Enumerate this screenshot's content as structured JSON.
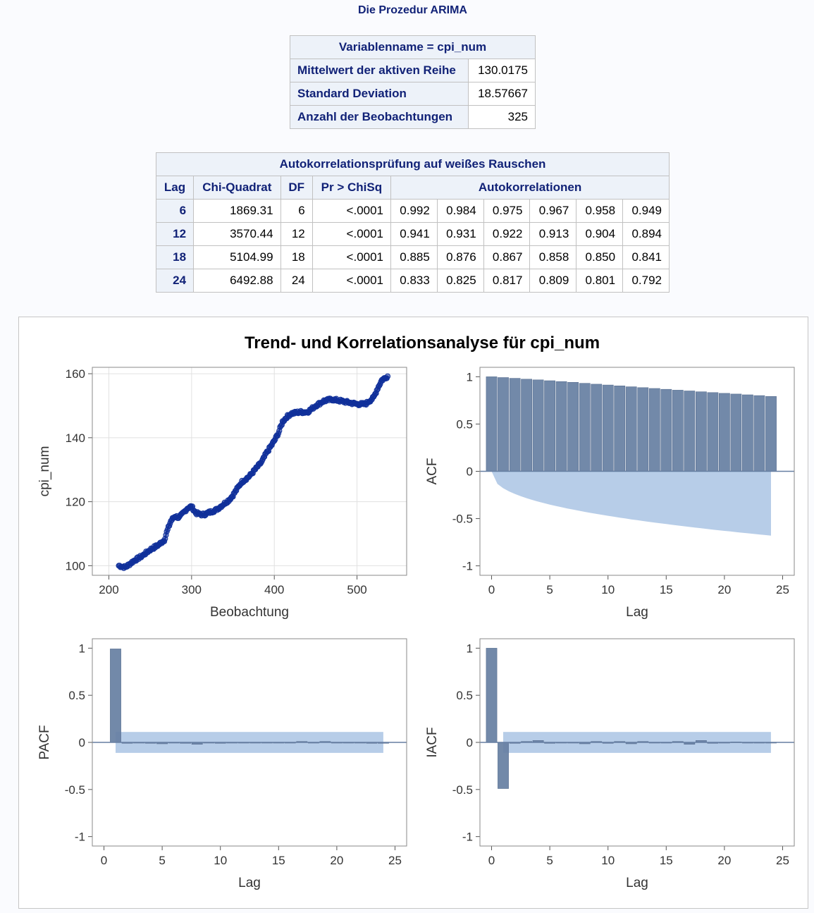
{
  "procedure_title": "Die Prozedur ARIMA",
  "summary_table": {
    "header": "Variablenname = cpi_num",
    "rows": [
      {
        "label": "Mittelwert der aktiven Reihe",
        "value": "130.0175"
      },
      {
        "label": "Standard Deviation",
        "value": "18.57667"
      },
      {
        "label": "Anzahl der Beobachtungen",
        "value": "325"
      }
    ]
  },
  "whitenoise_table": {
    "title": "Autokorrelationsprüfung auf weißes Rauschen",
    "columns": [
      "Lag",
      "Chi-Quadrat",
      "DF",
      "Pr > ChiSq",
      "Autokorrelationen"
    ],
    "rows": [
      {
        "lag": "6",
        "chisq": "1869.31",
        "df": "6",
        "p": "<.0001",
        "ac": [
          "0.992",
          "0.984",
          "0.975",
          "0.967",
          "0.958",
          "0.949"
        ]
      },
      {
        "lag": "12",
        "chisq": "3570.44",
        "df": "12",
        "p": "<.0001",
        "ac": [
          "0.941",
          "0.931",
          "0.922",
          "0.913",
          "0.904",
          "0.894"
        ]
      },
      {
        "lag": "18",
        "chisq": "5104.99",
        "df": "18",
        "p": "<.0001",
        "ac": [
          "0.885",
          "0.876",
          "0.867",
          "0.858",
          "0.850",
          "0.841"
        ]
      },
      {
        "lag": "24",
        "chisq": "6492.88",
        "df": "24",
        "p": "<.0001",
        "ac": [
          "0.833",
          "0.825",
          "0.817",
          "0.809",
          "0.801",
          "0.792"
        ]
      }
    ]
  },
  "panel_title": "Trend- und Korrelationsanalyse für cpi_num",
  "colors": {
    "bar": "#667fa2",
    "band": "#b7cde8",
    "series": "#10309a",
    "header_text": "#112277"
  },
  "chart_data": [
    {
      "type": "scatter",
      "xlabel": "Beobachtung",
      "ylabel": "cpi_num",
      "xlim": [
        180,
        560
      ],
      "ylim": [
        97,
        162
      ],
      "xticks": [
        200,
        300,
        400,
        500
      ],
      "yticks": [
        100,
        120,
        140,
        160
      ],
      "grid": true,
      "anchors": [
        [
          212,
          100
        ],
        [
          220,
          99.5
        ],
        [
          225,
          100.5
        ],
        [
          230,
          101.5
        ],
        [
          240,
          103
        ],
        [
          250,
          105
        ],
        [
          260,
          106.5
        ],
        [
          267,
          108
        ],
        [
          270,
          110.5
        ],
        [
          275,
          114
        ],
        [
          280,
          115.5
        ],
        [
          285,
          115
        ],
        [
          290,
          116.5
        ],
        [
          295,
          118
        ],
        [
          300,
          118.5
        ],
        [
          305,
          116.5
        ],
        [
          310,
          116
        ],
        [
          315,
          116
        ],
        [
          320,
          116.5
        ],
        [
          325,
          117
        ],
        [
          330,
          117.5
        ],
        [
          335,
          118.5
        ],
        [
          340,
          119.5
        ],
        [
          345,
          120.5
        ],
        [
          350,
          122
        ],
        [
          355,
          124
        ],
        [
          360,
          126
        ],
        [
          365,
          127
        ],
        [
          370,
          128
        ],
        [
          375,
          129.5
        ],
        [
          380,
          131
        ],
        [
          385,
          132.5
        ],
        [
          390,
          135
        ],
        [
          395,
          137
        ],
        [
          400,
          139
        ],
        [
          405,
          141.5
        ],
        [
          410,
          145
        ],
        [
          415,
          146.5
        ],
        [
          420,
          147.5
        ],
        [
          430,
          148
        ],
        [
          440,
          148
        ],
        [
          450,
          150
        ],
        [
          460,
          151.5
        ],
        [
          470,
          152
        ],
        [
          480,
          151.5
        ],
        [
          490,
          151
        ],
        [
          500,
          150.5
        ],
        [
          510,
          150.5
        ],
        [
          520,
          152.5
        ],
        [
          525,
          155.5
        ],
        [
          530,
          158
        ],
        [
          537,
          159.2
        ]
      ]
    },
    {
      "type": "bar",
      "ylabel": "ACF",
      "xlabel": "Lag",
      "xlim": [
        -1,
        26
      ],
      "ylim": [
        -1.1,
        1.1
      ],
      "xticks": [
        0,
        5,
        10,
        15,
        20,
        25
      ],
      "yticks": [
        1.0,
        0.5,
        0.0,
        -0.5,
        -1.0
      ],
      "x": [
        0,
        1,
        2,
        3,
        4,
        5,
        6,
        7,
        8,
        9,
        10,
        11,
        12,
        13,
        14,
        15,
        16,
        17,
        18,
        19,
        20,
        21,
        22,
        23,
        24
      ],
      "values": [
        1.0,
        0.992,
        0.984,
        0.975,
        0.967,
        0.958,
        0.949,
        0.941,
        0.931,
        0.922,
        0.913,
        0.904,
        0.894,
        0.885,
        0.876,
        0.867,
        0.858,
        0.85,
        0.841,
        0.833,
        0.825,
        0.817,
        0.809,
        0.801,
        0.792
      ],
      "band_lower_end": -0.68
    },
    {
      "type": "bar",
      "ylabel": "PACF",
      "xlabel": "Lag",
      "xlim": [
        -1,
        26
      ],
      "ylim": [
        -1.1,
        1.1
      ],
      "xticks": [
        0,
        5,
        10,
        15,
        20,
        25
      ],
      "yticks": [
        1.0,
        0.5,
        0.0,
        -0.5,
        -1.0
      ],
      "x": [
        1,
        2,
        3,
        4,
        5,
        6,
        7,
        8,
        9,
        10,
        11,
        12,
        13,
        14,
        15,
        16,
        17,
        18,
        19,
        20,
        21,
        22,
        23,
        24
      ],
      "values": [
        0.992,
        -0.01,
        0.0,
        -0.01,
        -0.015,
        0.0,
        -0.01,
        -0.02,
        0.0,
        -0.01,
        0.0,
        -0.005,
        0.0,
        0.0,
        0.0,
        0.0,
        0.01,
        0.0,
        0.01,
        0.0,
        0.0,
        0.0,
        -0.01,
        -0.01
      ],
      "band": 0.111
    },
    {
      "type": "bar",
      "ylabel": "IACF",
      "xlabel": "Lag",
      "xlim": [
        -1,
        26
      ],
      "ylim": [
        -1.1,
        1.1
      ],
      "xticks": [
        0,
        5,
        10,
        15,
        20,
        25
      ],
      "yticks": [
        1.0,
        0.5,
        0.0,
        -0.5,
        -1.0
      ],
      "x": [
        0,
        1,
        2,
        3,
        4,
        5,
        6,
        7,
        8,
        9,
        10,
        11,
        12,
        13,
        14,
        15,
        16,
        17,
        18,
        19,
        20,
        21,
        22,
        23,
        24
      ],
      "values": [
        1.0,
        -0.49,
        -0.01,
        0.01,
        0.02,
        -0.01,
        0.0,
        0.0,
        -0.015,
        0.01,
        -0.01,
        0.01,
        -0.015,
        0.01,
        0.0,
        0.0,
        0.01,
        -0.02,
        0.02,
        -0.01,
        0.0,
        0.005,
        0.0,
        0.0,
        0.0
      ],
      "band": 0.111
    }
  ]
}
